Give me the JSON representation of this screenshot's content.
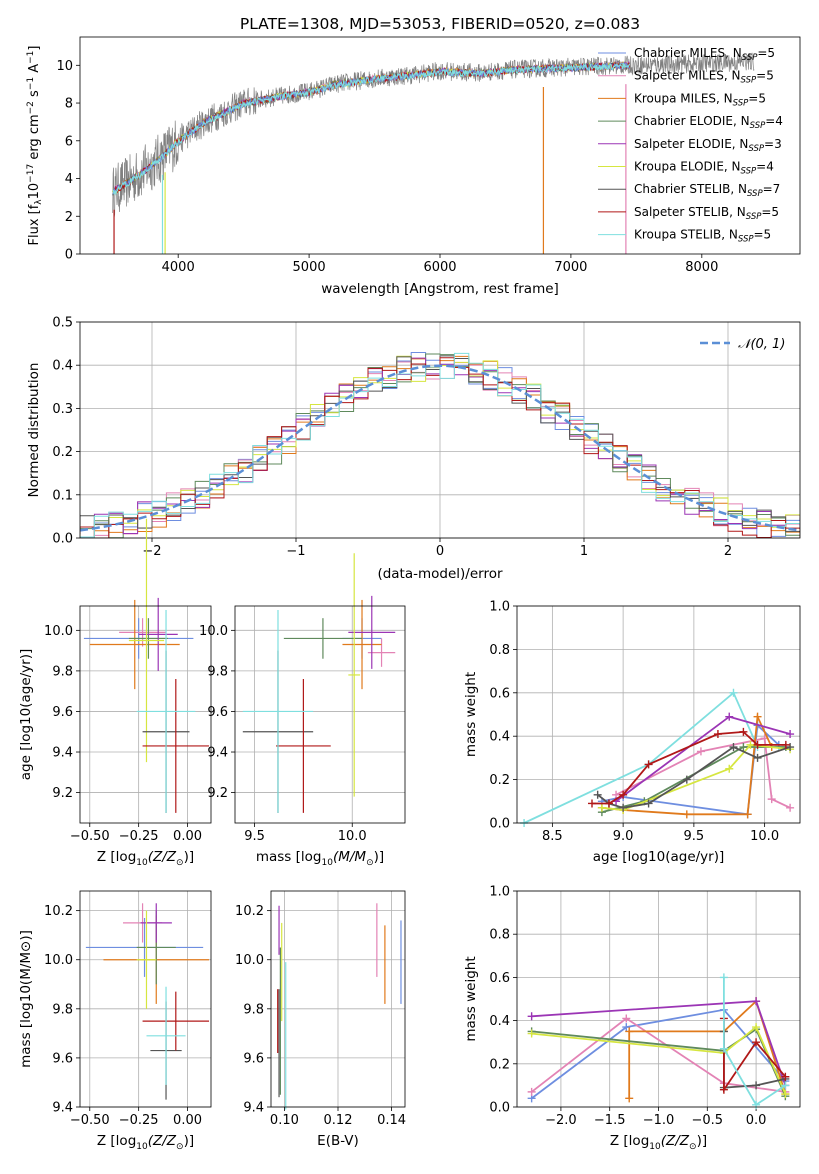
{
  "title": "PLATE=1308, MJD=53053, FIBERID=0520, z=0.083",
  "colors": {
    "chabrier_miles": "#6e8ee0",
    "salpeter_miles": "#e383b5",
    "kroupa_miles": "#e07a1c",
    "chabrier_elodie": "#5f8a5c",
    "salpeter_elodie": "#9b35b5",
    "kroupa_elodie": "#d6e640",
    "chabrier_stelib": "#555555",
    "salpeter_stelib": "#b01818",
    "kroupa_stelib": "#7fdfdf",
    "spectrum": "#808080",
    "gaussian": "#5b8fd6"
  },
  "chart_data": [
    {
      "id": "spectrum",
      "type": "line",
      "xlabel": "wavelength [Angstrom, rest frame]",
      "ylabel_parts": [
        "Flux [f",
        "λ",
        "10",
        "−17",
        " erg cm",
        "−2",
        " s",
        "−1",
        " A",
        "−1",
        "]"
      ],
      "xlim": [
        3250,
        8750
      ],
      "ylim": [
        0,
        11.5
      ],
      "xticks": [
        4000,
        5000,
        6000,
        7000,
        8000
      ],
      "yticks": [
        0,
        2,
        4,
        6,
        8,
        10
      ],
      "legend_position": "upper-right",
      "legend": [
        {
          "imf": "Chabrier MILES, N",
          "sub": "SSP",
          "rest": "=5",
          "color_key": "chabrier_miles"
        },
        {
          "imf": "Salpeter MILES, N",
          "sub": "SSP",
          "rest": "=5",
          "color_key": "salpeter_miles"
        },
        {
          "imf": "Kroupa MILES, N",
          "sub": "SSP",
          "rest": "=5",
          "color_key": "kroupa_miles"
        },
        {
          "imf": "Chabrier ELODIE, N",
          "sub": "SSP",
          "rest": "=4",
          "color_key": "chabrier_elodie"
        },
        {
          "imf": "Salpeter ELODIE, N",
          "sub": "SSP",
          "rest": "=3",
          "color_key": "salpeter_elodie"
        },
        {
          "imf": "Kroupa ELODIE, N",
          "sub": "SSP",
          "rest": "=4",
          "color_key": "kroupa_elodie"
        },
        {
          "imf": "Chabrier STELIB, N",
          "sub": "SSP",
          "rest": "=7",
          "color_key": "chabrier_stelib"
        },
        {
          "imf": "Salpeter STELIB, N",
          "sub": "SSP",
          "rest": "=5",
          "color_key": "salpeter_stelib"
        },
        {
          "imf": "Kroupa STELIB, N",
          "sub": "SSP",
          "rest": "=5",
          "color_key": "kroupa_stelib"
        }
      ],
      "continuum": [
        [
          3500,
          3.3
        ],
        [
          3700,
          4.2
        ],
        [
          3850,
          5.0
        ],
        [
          4000,
          6.0
        ],
        [
          4200,
          7.0
        ],
        [
          4500,
          8.0
        ],
        [
          4800,
          8.4
        ],
        [
          5000,
          8.6
        ],
        [
          5200,
          9.0
        ],
        [
          5500,
          9.3
        ],
        [
          5800,
          9.5
        ],
        [
          6000,
          9.7
        ],
        [
          6300,
          9.6
        ],
        [
          6600,
          9.8
        ],
        [
          7000,
          9.9
        ],
        [
          7400,
          10.0
        ],
        [
          8000,
          10.1
        ],
        [
          8400,
          10.2
        ]
      ],
      "spectrum_range": [
        3500,
        8400
      ],
      "model_range": [
        3500,
        7450
      ]
    },
    {
      "id": "residuals",
      "type": "histogram",
      "xlabel": "(data-model)/error",
      "ylabel": "Normed distribution",
      "xlim": [
        -2.5,
        2.5
      ],
      "ylim": [
        0,
        0.5
      ],
      "xticks": [
        -2,
        -1,
        0,
        1,
        2
      ],
      "yticks": [
        0,
        0.1,
        0.2,
        0.3,
        0.4,
        0.5
      ],
      "legend_label": "𝒩(0, 1)",
      "legend_position": "upper-right",
      "bin_width": 0.1
    },
    {
      "id": "age_vs_z",
      "type": "scatter",
      "xlabel": "Z [log",
      "xlabel_sub": "10",
      "xlabel_rest": "(Z/Z",
      "xlabel_end": ")]",
      "ylabel": "age  [log10(age/yr)]",
      "xlim": [
        -0.55,
        0.12
      ],
      "ylim": [
        9.05,
        10.12
      ],
      "xticks": [
        -0.5,
        -0.25,
        0.0
      ],
      "xtick_labels": [
        "−0.50",
        "−0.25",
        "0.00"
      ],
      "yticks": [
        9.2,
        9.4,
        9.6,
        9.8,
        10.0
      ],
      "points": [
        {
          "color_key": "chabrier_miles",
          "x": -0.25,
          "xerr": 0.28,
          "y": 9.96,
          "yerr": 0.1
        },
        {
          "color_key": "salpeter_miles",
          "x": -0.23,
          "xerr": 0.12,
          "y": 9.99,
          "yerr": 0.07
        },
        {
          "color_key": "kroupa_miles",
          "x": -0.27,
          "xerr": 0.23,
          "y": 9.93,
          "yerr": 0.22
        },
        {
          "color_key": "chabrier_elodie",
          "x": -0.2,
          "xerr": 0.1,
          "y": 9.96,
          "yerr": 0.1
        },
        {
          "color_key": "salpeter_elodie",
          "x": -0.15,
          "xerr": 0.1,
          "y": 9.98,
          "yerr": 0.18
        },
        {
          "color_key": "kroupa_elodie",
          "x": -0.21,
          "xerr": 0.09,
          "y": 9.95,
          "yerr": 0.6
        },
        {
          "color_key": "chabrier_stelib",
          "x": -0.11,
          "xerr": 0.12,
          "y": 9.5,
          "yerr": 0.4
        },
        {
          "color_key": "salpeter_stelib",
          "x": -0.06,
          "xerr": 0.17,
          "y": 9.43,
          "yerr": 0.33
        },
        {
          "color_key": "kroupa_stelib",
          "x": -0.11,
          "xerr": 0.15,
          "y": 9.6,
          "yerr": 0.5
        }
      ]
    },
    {
      "id": "age_vs_mass",
      "type": "scatter",
      "xlabel": "mass [log",
      "xlabel_sub": "10",
      "xlabel_rest": "(M/M",
      "xlabel_end": ")]",
      "xlim": [
        9.4,
        10.27
      ],
      "ylim": [
        9.05,
        10.12
      ],
      "xticks": [
        9.5,
        10.0
      ],
      "xtick_labels": [
        "9.5",
        "10.0"
      ],
      "yticks": [
        9.2,
        9.4,
        9.6,
        9.8,
        10.0
      ],
      "points": [
        {
          "color_key": "chabrier_miles",
          "x": 10.05,
          "xerr": 0.1,
          "y": 9.96,
          "yerr": 0.1
        },
        {
          "color_key": "salpeter_miles",
          "x": 10.15,
          "xerr": 0.07,
          "y": 9.89,
          "yerr": 0.07
        },
        {
          "color_key": "kroupa_miles",
          "x": 10.05,
          "xerr": 0.1,
          "y": 9.93,
          "yerr": 0.22
        },
        {
          "color_key": "chabrier_elodie",
          "x": 9.85,
          "xerr": 0.2,
          "y": 9.96,
          "yerr": 0.1
        },
        {
          "color_key": "salpeter_elodie",
          "x": 10.1,
          "xerr": 0.12,
          "y": 9.99,
          "yerr": 0.18
        },
        {
          "color_key": "kroupa_elodie",
          "x": 10.01,
          "xerr": 0.03,
          "y": 9.78,
          "yerr": 0.6
        },
        {
          "color_key": "chabrier_stelib",
          "x": 9.62,
          "xerr": 0.18,
          "y": 9.5,
          "yerr": 0.4
        },
        {
          "color_key": "salpeter_stelib",
          "x": 9.75,
          "xerr": 0.14,
          "y": 9.43,
          "yerr": 0.33
        },
        {
          "color_key": "kroupa_stelib",
          "x": 9.62,
          "xerr": 0.18,
          "y": 9.6,
          "yerr": 0.5
        }
      ]
    },
    {
      "id": "mass_weight_vs_age",
      "type": "line",
      "xlabel": "age  [log10(age/yr)]",
      "ylabel": "mass weight",
      "xlim": [
        8.25,
        10.25
      ],
      "ylim": [
        0,
        1
      ],
      "xticks": [
        8.5,
        9.0,
        9.5,
        10.0
      ],
      "xtick_labels": [
        "8.5",
        "9.0",
        "9.5",
        "10.0"
      ],
      "yticks": [
        0,
        0.2,
        0.4,
        0.6,
        0.8,
        1.0
      ],
      "series": [
        {
          "color_key": "kroupa_stelib",
          "x": [
            8.3,
            9.18,
            9.78,
            9.95,
            10.1
          ],
          "y": [
            0.0,
            0.27,
            0.6,
            0.35,
            0.35
          ]
        },
        {
          "color_key": "chabrier_miles",
          "x": [
            8.85,
            9.0,
            9.88,
            9.95,
            10.1
          ],
          "y": [
            0.1,
            0.12,
            0.04,
            0.45,
            0.36
          ]
        },
        {
          "color_key": "salpeter_miles",
          "x": [
            8.95,
            9.55,
            10.0,
            10.05,
            10.18
          ],
          "y": [
            0.13,
            0.33,
            0.39,
            0.11,
            0.07
          ]
        },
        {
          "color_key": "kroupa_miles",
          "x": [
            8.85,
            9.0,
            9.45,
            9.88,
            9.95,
            10.05
          ],
          "y": [
            0.07,
            0.06,
            0.04,
            0.04,
            0.49,
            0.35
          ]
        },
        {
          "color_key": "chabrier_elodie",
          "x": [
            8.85,
            9.15,
            9.85,
            10.15
          ],
          "y": [
            0.05,
            0.1,
            0.35,
            0.35
          ]
        },
        {
          "color_key": "salpeter_elodie",
          "x": [
            8.95,
            9.75,
            10.18
          ],
          "y": [
            0.1,
            0.49,
            0.41
          ]
        },
        {
          "color_key": "kroupa_elodie",
          "x": [
            8.85,
            9.0,
            9.75,
            9.9,
            10.18
          ],
          "y": [
            0.07,
            0.06,
            0.25,
            0.36,
            0.34
          ]
        },
        {
          "color_key": "chabrier_stelib",
          "x": [
            8.82,
            8.9,
            9.0,
            9.18,
            9.45,
            9.78,
            9.95,
            10.18
          ],
          "y": [
            0.13,
            0.09,
            0.07,
            0.09,
            0.2,
            0.35,
            0.3,
            0.35
          ]
        },
        {
          "color_key": "salpeter_stelib",
          "x": [
            8.78,
            8.9,
            9.0,
            9.18,
            9.67,
            9.85,
            9.95,
            10.15
          ],
          "y": [
            0.09,
            0.09,
            0.13,
            0.27,
            0.41,
            0.42,
            0.36,
            0.36
          ]
        }
      ]
    },
    {
      "id": "mass_vs_z",
      "type": "scatter",
      "xlabel": "Z [log",
      "xlabel_sub": "10",
      "xlabel_rest": "(Z/Z",
      "xlabel_end": ")]",
      "ylabel": "mass [log10(M/M⊙)]",
      "xlim": [
        -0.55,
        0.12
      ],
      "ylim": [
        9.4,
        10.28
      ],
      "xticks": [
        -0.5,
        -0.25,
        0.0
      ],
      "xtick_labels": [
        "−0.50",
        "−0.25",
        "0.00"
      ],
      "yticks": [
        9.4,
        9.6,
        9.8,
        10.0,
        10.2
      ],
      "points": [
        {
          "color_key": "chabrier_miles",
          "x": -0.22,
          "xerr": 0.3,
          "y": 10.05,
          "yerr": 0.12
        },
        {
          "color_key": "salpeter_miles",
          "x": -0.23,
          "xerr": 0.1,
          "y": 10.15,
          "yerr": 0.08
        },
        {
          "color_key": "kroupa_miles",
          "x": -0.16,
          "xerr": 0.27,
          "y": 10.0,
          "yerr": 0.18
        },
        {
          "color_key": "chabrier_elodie",
          "x": -0.16,
          "xerr": 0.1,
          "y": 10.05,
          "yerr": 0.15
        },
        {
          "color_key": "salpeter_elodie",
          "x": -0.16,
          "xerr": 0.08,
          "y": 10.15,
          "yerr": 0.08
        },
        {
          "color_key": "kroupa_elodie",
          "x": -0.21,
          "xerr": 0.05,
          "y": 10.0,
          "yerr": 0.2
        },
        {
          "color_key": "chabrier_stelib",
          "x": -0.11,
          "xerr": 0.08,
          "y": 9.63,
          "yerr": 0.2
        },
        {
          "color_key": "salpeter_stelib",
          "x": -0.06,
          "xerr": 0.17,
          "y": 9.75,
          "yerr": 0.12
        },
        {
          "color_key": "kroupa_stelib",
          "x": -0.11,
          "xerr": 0.1,
          "y": 9.69,
          "yerr": 0.2
        }
      ]
    },
    {
      "id": "mass_vs_ebv",
      "type": "scatter",
      "xlabel": "E(B-V)",
      "xlim": [
        0.095,
        0.145
      ],
      "ylim": [
        9.4,
        10.28
      ],
      "xticks": [
        0.1,
        0.12,
        0.14
      ],
      "xtick_labels": [
        "0.10",
        "0.12",
        "0.14"
      ],
      "yticks": [
        9.4,
        9.6,
        9.8,
        10.0,
        10.2
      ],
      "points": [
        {
          "color_key": "chabrier_miles",
          "x": 0.1435,
          "y": 9.99,
          "yerr": 0.17
        },
        {
          "color_key": "salpeter_miles",
          "x": 0.1345,
          "y": 10.08,
          "yerr": 0.15
        },
        {
          "color_key": "kroupa_miles",
          "x": 0.1375,
          "y": 9.98,
          "yerr": 0.16
        },
        {
          "color_key": "chabrier_elodie",
          "x": 0.0985,
          "y": 9.75,
          "yerr": 0.3
        },
        {
          "color_key": "salpeter_elodie",
          "x": 0.098,
          "y": 10.12,
          "yerr": 0.1
        },
        {
          "color_key": "kroupa_elodie",
          "x": 0.099,
          "y": 9.95,
          "yerr": 0.2
        },
        {
          "color_key": "chabrier_stelib",
          "x": 0.098,
          "y": 9.66,
          "yerr": 0.22
        },
        {
          "color_key": "salpeter_stelib",
          "x": 0.0975,
          "y": 9.75,
          "yerr": 0.13
        },
        {
          "color_key": "kroupa_stelib",
          "x": 0.1005,
          "y": 9.69,
          "yerr": 0.3
        }
      ]
    },
    {
      "id": "mass_weight_vs_z",
      "type": "line",
      "xlabel": "Z [log",
      "xlabel_sub": "10",
      "xlabel_rest": "(Z/Z",
      "xlabel_end": ")]",
      "ylabel": "mass weight",
      "xlim": [
        -2.45,
        0.45
      ],
      "ylim": [
        0,
        1
      ],
      "xticks": [
        -2.0,
        -1.5,
        -1.0,
        -0.5,
        0.0
      ],
      "xtick_labels": [
        "−2.0",
        "−1.5",
        "−1.0",
        "−0.5",
        "0.0"
      ],
      "yticks": [
        0,
        0.2,
        0.4,
        0.6,
        0.8,
        1.0
      ],
      "series": [
        {
          "color_key": "chabrier_miles",
          "x": [
            -2.3,
            -1.33,
            -0.33,
            0.3
          ],
          "y": [
            0.04,
            0.37,
            0.45,
            0.12
          ]
        },
        {
          "color_key": "salpeter_miles",
          "x": [
            -2.3,
            -1.33,
            -0.33,
            0.3
          ],
          "y": [
            0.07,
            0.41,
            0.11,
            0.07
          ]
        },
        {
          "color_key": "kroupa_miles",
          "x": [
            -1.3,
            -1.3,
            -0.33,
            0.0,
            0.3
          ],
          "y": [
            0.04,
            0.35,
            0.35,
            0.49,
            0.06
          ]
        },
        {
          "color_key": "chabrier_elodie",
          "x": [
            -2.3,
            -0.33,
            0.0,
            0.3
          ],
          "y": [
            0.35,
            0.26,
            0.36,
            0.05
          ]
        },
        {
          "color_key": "salpeter_elodie",
          "x": [
            -2.3,
            0.0,
            0.3
          ],
          "y": [
            0.42,
            0.49,
            0.1
          ]
        },
        {
          "color_key": "kroupa_elodie",
          "x": [
            -2.3,
            -0.33,
            0.0,
            0.3
          ],
          "y": [
            0.34,
            0.25,
            0.37,
            0.06
          ]
        },
        {
          "color_key": "chabrier_stelib",
          "x": [
            -0.33,
            -0.33,
            0.0,
            0.3
          ],
          "y": [
            0.35,
            0.09,
            0.1,
            0.13
          ]
        },
        {
          "color_key": "salpeter_stelib",
          "x": [
            -0.33,
            -0.33,
            0.0,
            0.3
          ],
          "y": [
            0.41,
            0.08,
            0.3,
            0.14
          ]
        },
        {
          "color_key": "kroupa_stelib",
          "x": [
            -0.33,
            -0.33,
            0.0,
            0.3
          ],
          "y": [
            0.6,
            0.27,
            0.01,
            0.1
          ]
        }
      ]
    }
  ]
}
